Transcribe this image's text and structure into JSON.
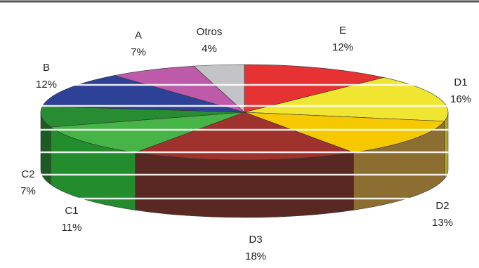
{
  "chart_data": {
    "type": "pie",
    "title": "",
    "slices": [
      {
        "label": "E",
        "value": 12,
        "value_label": "12%",
        "color": "#e63232",
        "side": "#a01e1e"
      },
      {
        "label": "D1",
        "value": 16,
        "value_label": "16%",
        "color": "#f0e632",
        "side": "#b4a81e"
      },
      {
        "label": "D2",
        "value": 13,
        "value_label": "13%",
        "color": "#f5c800",
        "side": "#8c6e32"
      },
      {
        "label": "D3",
        "value": 18,
        "value_label": "18%",
        "color": "#a0322d",
        "side": "#5a2823"
      },
      {
        "label": "C1",
        "value": 11,
        "value_label": "11%",
        "color": "#46b446",
        "side": "#238c2d"
      },
      {
        "label": "C2",
        "value": 7,
        "value_label": "7%",
        "color": "#288c32",
        "side": "#1e5a23"
      },
      {
        "label": "B",
        "value": 12,
        "value_label": "12%",
        "color": "#2d4196",
        "side": "#1e2d64"
      },
      {
        "label": "A",
        "value": 7,
        "value_label": "7%",
        "color": "#be5aaa",
        "side": "#823c78"
      },
      {
        "label": "Otros",
        "value": 4,
        "value_label": "4%",
        "color": "#c3c3c8",
        "side": "#8c8c91"
      }
    ],
    "start_angle_deg": -90,
    "direction": "clockwise",
    "view": "3d-tilted",
    "legend": "none"
  }
}
